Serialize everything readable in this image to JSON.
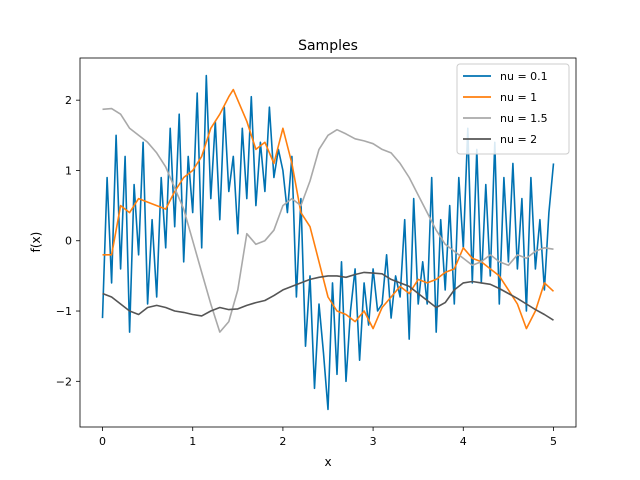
{
  "chart_data": {
    "type": "line",
    "title": "Samples",
    "xlabel": "x",
    "ylabel": "f(x)",
    "xlim": [
      -0.25,
      5.25
    ],
    "ylim": [
      -2.65,
      2.6
    ],
    "xticks": [
      0,
      1,
      2,
      3,
      4,
      5
    ],
    "xtick_labels": [
      "0",
      "1",
      "2",
      "3",
      "4",
      "5"
    ],
    "yticks": [
      -2,
      -1,
      0,
      1,
      2
    ],
    "ytick_labels": [
      "−2",
      "−1",
      "0",
      "1",
      "2"
    ],
    "grid": false,
    "legend_position": "top-right",
    "series": [
      {
        "name": "nu = 0.1",
        "color": "#0072b2",
        "x": [
          0,
          0.05,
          0.1,
          0.15,
          0.2,
          0.25,
          0.3,
          0.35,
          0.4,
          0.45,
          0.5,
          0.55,
          0.6,
          0.65,
          0.7,
          0.75,
          0.8,
          0.85,
          0.9,
          0.95,
          1.0,
          1.05,
          1.1,
          1.15,
          1.2,
          1.25,
          1.3,
          1.35,
          1.4,
          1.45,
          1.5,
          1.55,
          1.6,
          1.65,
          1.7,
          1.75,
          1.8,
          1.85,
          1.9,
          1.95,
          2.0,
          2.05,
          2.1,
          2.15,
          2.2,
          2.25,
          2.3,
          2.35,
          2.4,
          2.45,
          2.5,
          2.55,
          2.6,
          2.65,
          2.7,
          2.75,
          2.8,
          2.85,
          2.9,
          2.95,
          3.0,
          3.05,
          3.1,
          3.15,
          3.2,
          3.25,
          3.3,
          3.35,
          3.4,
          3.45,
          3.5,
          3.55,
          3.6,
          3.65,
          3.7,
          3.75,
          3.8,
          3.85,
          3.9,
          3.95,
          4.0,
          4.05,
          4.1,
          4.15,
          4.2,
          4.25,
          4.3,
          4.35,
          4.4,
          4.45,
          4.5,
          4.55,
          4.6,
          4.65,
          4.7,
          4.75,
          4.8,
          4.85,
          4.9,
          4.95,
          5.0
        ],
        "values": [
          -1.1,
          0.9,
          -0.6,
          1.5,
          -0.4,
          1.2,
          -1.3,
          0.8,
          -0.2,
          1.4,
          -0.9,
          0.3,
          -0.8,
          0.9,
          -0.1,
          1.6,
          0.2,
          1.8,
          -0.3,
          1.2,
          0.4,
          2.1,
          -0.1,
          2.35,
          0.6,
          1.7,
          0.3,
          1.9,
          0.7,
          1.2,
          0.1,
          1.6,
          0.6,
          2.05,
          0.5,
          1.4,
          0.7,
          1.9,
          0.9,
          1.3,
          1.0,
          0.4,
          1.2,
          -0.8,
          0.6,
          -1.5,
          -0.5,
          -2.1,
          -0.9,
          -1.6,
          -2.4,
          -0.6,
          -1.9,
          -0.3,
          -2.0,
          -1.0,
          -0.4,
          -1.7,
          -0.6,
          -1.2,
          -0.4,
          -1.0,
          -0.9,
          -0.2,
          -1.1,
          -0.5,
          -0.8,
          0.3,
          -1.4,
          0.6,
          -0.9,
          -0.3,
          -0.9,
          0.9,
          -1.3,
          0.3,
          -0.7,
          0.5,
          -0.9,
          0.9,
          -0.1,
          1.6,
          -0.6,
          1.3,
          -0.6,
          0.8,
          -0.5,
          1.4,
          -0.9,
          0.9,
          -0.3,
          1.1,
          -0.4,
          0.6,
          -1.0,
          0.9,
          -0.4,
          0.3,
          -0.7,
          0.4,
          1.1
        ]
      },
      {
        "name": "nu = 1",
        "color": "#ff7f0e",
        "x": [
          0,
          0.1,
          0.2,
          0.3,
          0.4,
          0.5,
          0.6,
          0.7,
          0.8,
          0.9,
          1.0,
          1.1,
          1.2,
          1.3,
          1.4,
          1.45,
          1.5,
          1.6,
          1.7,
          1.8,
          1.9,
          2.0,
          2.1,
          2.2,
          2.3,
          2.4,
          2.5,
          2.6,
          2.7,
          2.8,
          2.9,
          3.0,
          3.1,
          3.2,
          3.3,
          3.4,
          3.5,
          3.6,
          3.7,
          3.8,
          3.9,
          4.0,
          4.1,
          4.2,
          4.3,
          4.4,
          4.5,
          4.6,
          4.7,
          4.8,
          4.9,
          5.0
        ],
        "values": [
          -0.2,
          -0.2,
          0.5,
          0.4,
          0.6,
          0.55,
          0.5,
          0.45,
          0.7,
          0.9,
          1.0,
          1.2,
          1.6,
          1.8,
          2.05,
          2.15,
          2.0,
          1.7,
          1.3,
          1.4,
          1.1,
          1.6,
          1.1,
          0.4,
          0.2,
          -0.3,
          -0.8,
          -1.0,
          -1.05,
          -1.15,
          -1.0,
          -1.25,
          -0.95,
          -0.8,
          -0.65,
          -0.75,
          -0.55,
          -0.6,
          -0.55,
          -0.45,
          -0.4,
          -0.1,
          -0.25,
          -0.3,
          -0.4,
          -0.5,
          -0.7,
          -0.9,
          -1.25,
          -1.0,
          -0.6,
          -0.72
        ]
      },
      {
        "name": "nu = 1.5",
        "color": "#a9a9a9",
        "x": [
          0,
          0.1,
          0.2,
          0.3,
          0.4,
          0.5,
          0.6,
          0.7,
          0.8,
          0.9,
          1.0,
          1.1,
          1.2,
          1.3,
          1.4,
          1.5,
          1.6,
          1.7,
          1.8,
          1.9,
          2.0,
          2.1,
          2.2,
          2.3,
          2.4,
          2.5,
          2.6,
          2.7,
          2.8,
          2.9,
          3.0,
          3.1,
          3.2,
          3.3,
          3.4,
          3.5,
          3.6,
          3.7,
          3.8,
          3.9,
          4.0,
          4.1,
          4.2,
          4.3,
          4.4,
          4.5,
          4.6,
          4.7,
          4.8,
          4.9,
          5.0
        ],
        "values": [
          1.87,
          1.88,
          1.8,
          1.6,
          1.5,
          1.4,
          1.25,
          1.05,
          0.75,
          0.45,
          0.0,
          -0.45,
          -0.9,
          -1.3,
          -1.15,
          -0.7,
          0.1,
          -0.05,
          0.0,
          0.15,
          0.5,
          0.6,
          0.5,
          0.85,
          1.3,
          1.5,
          1.58,
          1.52,
          1.45,
          1.42,
          1.38,
          1.3,
          1.25,
          1.1,
          0.9,
          0.65,
          0.4,
          0.15,
          -0.05,
          -0.15,
          -0.25,
          -0.35,
          -0.3,
          -0.2,
          -0.3,
          -0.35,
          -0.2,
          -0.25,
          -0.15,
          -0.1,
          -0.12
        ]
      },
      {
        "name": "nu = 2",
        "color": "#555555",
        "x": [
          0,
          0.1,
          0.2,
          0.3,
          0.4,
          0.5,
          0.6,
          0.7,
          0.8,
          0.9,
          1.0,
          1.1,
          1.2,
          1.3,
          1.4,
          1.5,
          1.6,
          1.7,
          1.8,
          1.9,
          2.0,
          2.1,
          2.2,
          2.3,
          2.4,
          2.5,
          2.6,
          2.7,
          2.8,
          2.9,
          3.0,
          3.1,
          3.2,
          3.3,
          3.4,
          3.5,
          3.6,
          3.7,
          3.8,
          3.9,
          4.0,
          4.1,
          4.2,
          4.3,
          4.4,
          4.5,
          4.6,
          4.7,
          4.8,
          4.9,
          5.0
        ],
        "values": [
          -0.75,
          -0.8,
          -0.9,
          -1.0,
          -1.05,
          -0.95,
          -0.92,
          -0.95,
          -1.0,
          -1.02,
          -1.05,
          -1.07,
          -1.0,
          -0.95,
          -0.98,
          -0.97,
          -0.92,
          -0.88,
          -0.85,
          -0.78,
          -0.7,
          -0.65,
          -0.6,
          -0.55,
          -0.52,
          -0.5,
          -0.5,
          -0.52,
          -0.48,
          -0.45,
          -0.46,
          -0.47,
          -0.55,
          -0.6,
          -0.65,
          -0.75,
          -0.85,
          -0.95,
          -0.88,
          -0.7,
          -0.6,
          -0.58,
          -0.6,
          -0.62,
          -0.68,
          -0.75,
          -0.82,
          -0.9,
          -0.98,
          -1.05,
          -1.13
        ]
      }
    ]
  }
}
